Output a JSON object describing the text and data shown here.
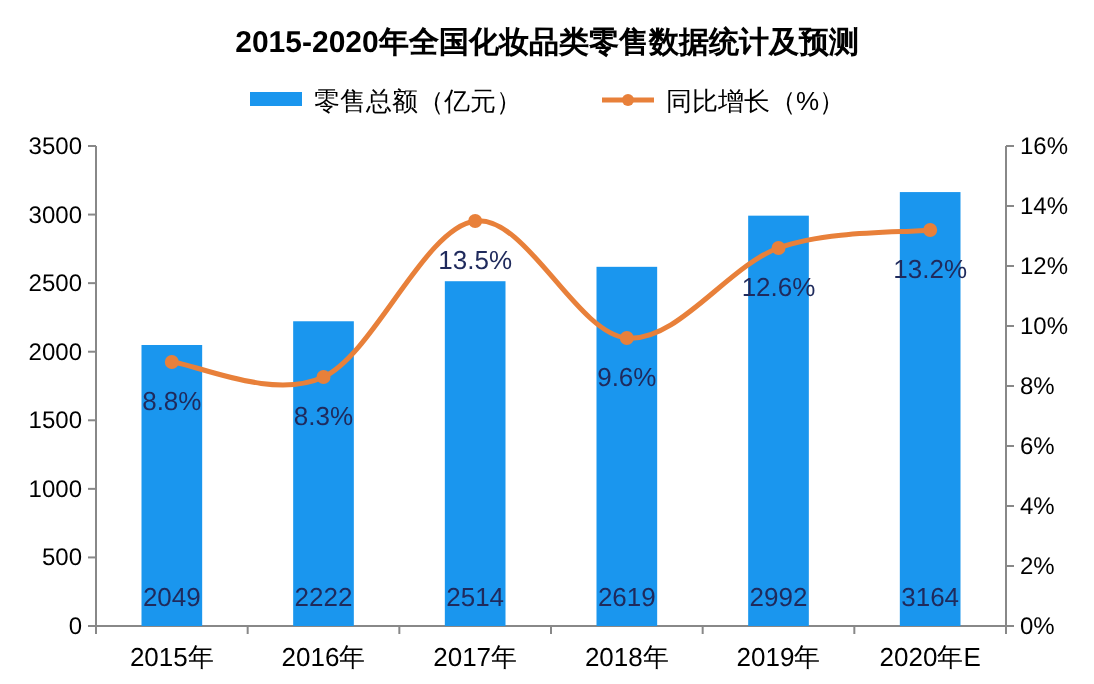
{
  "chart_data": {
    "type": "bar",
    "title": "2015-2020年全国化妆品类零售数据统计及预测",
    "categories": [
      "2015年",
      "2016年",
      "2017年",
      "2018年",
      "2019年",
      "2020年E"
    ],
    "series": [
      {
        "name": "零售总额（亿元）",
        "color": "#1a96ee",
        "values": [
          2049,
          2222,
          2514,
          2619,
          2992,
          3164
        ],
        "value_labels": [
          "2049",
          "2222",
          "2514",
          "2619",
          "2992",
          "3164"
        ]
      },
      {
        "name": "同比增长（%）",
        "type": "line",
        "axis": "y2",
        "color": "#e8803a",
        "marker": "circle",
        "values": [
          8.8,
          8.3,
          13.5,
          9.6,
          12.6,
          13.2
        ],
        "value_labels": [
          "8.8%",
          "8.3%",
          "13.5%",
          "9.6%",
          "12.6%",
          "13.2%"
        ]
      }
    ],
    "ylim": [
      0,
      3500
    ],
    "yticks": [
      0,
      500,
      1000,
      1500,
      2000,
      2500,
      3000,
      3500
    ],
    "y2lim": [
      0,
      16
    ],
    "y2ticks": [
      {
        "value": 0,
        "label": "0%"
      },
      {
        "value": 2,
        "label": "2%"
      },
      {
        "value": 4,
        "label": "4%"
      },
      {
        "value": 6,
        "label": "6%"
      },
      {
        "value": 8,
        "label": "8%"
      },
      {
        "value": 10,
        "label": "10%"
      },
      {
        "value": 12,
        "label": "12%"
      },
      {
        "value": 14,
        "label": "14%"
      },
      {
        "value": 16,
        "label": "16%"
      }
    ],
    "grid": false,
    "legend": "top"
  }
}
